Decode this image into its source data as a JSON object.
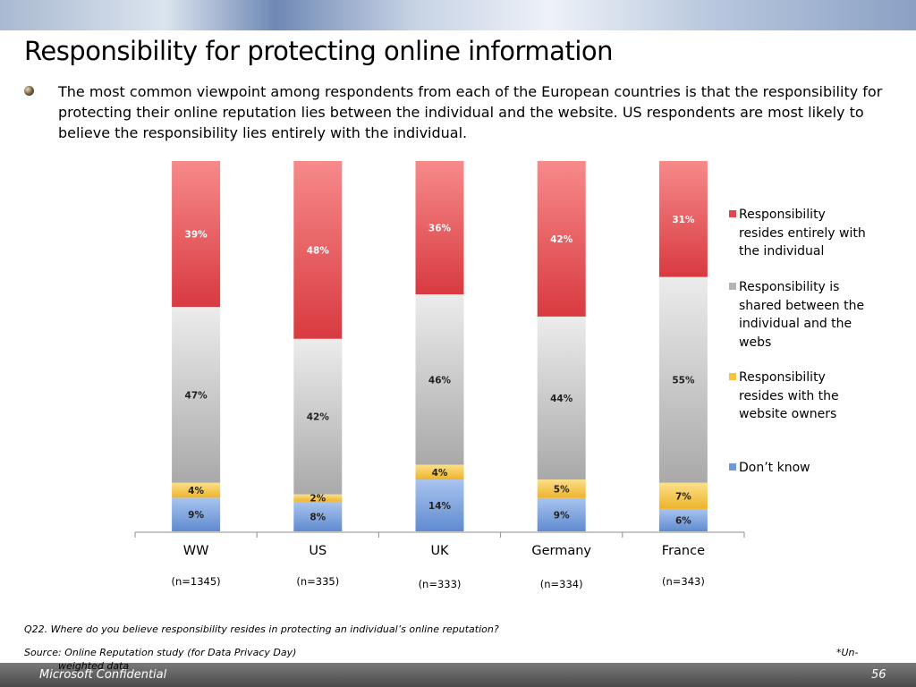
{
  "slide": {
    "title": "Responsibility for protecting online information",
    "intro": "The most common viewpoint among respondents from each of the European countries is that the responsibility for protecting their online reputation lies between the individual and the website. US respondents are most likely to believe the responsibility lies entirely with the individual.",
    "question": "Q22. Where do you believe responsibility resides in protecting an individual’s online reputation?",
    "source": "Source: Online Reputation study (for Data Privacy Day)",
    "unweighted_a": "*Un-",
    "unweighted_b": "weighted data",
    "confidential": "Microsoft Confidential",
    "page_number": "56"
  },
  "colors": {
    "individual": "#e0474c",
    "shared": "#b4b4b4",
    "website": "#f5c242",
    "dont_know": "#7098d6"
  },
  "chart_data": {
    "type": "bar",
    "stacked": true,
    "percent_stacked": true,
    "categories": [
      "WW",
      "US",
      "UK",
      "Germany",
      "France"
    ],
    "sample_sizes": [
      "(n=1345)",
      "(n=335)",
      "(n=333)",
      "(n=334)",
      "(n=343)"
    ],
    "series": [
      {
        "name": "Don’t know",
        "key": "dont_know",
        "values": [
          9,
          8,
          14,
          9,
          6
        ],
        "labels": [
          "9%",
          "8%",
          "14%",
          "9%",
          "6%"
        ]
      },
      {
        "name": "Responsibility resides with the website owners",
        "key": "website",
        "values": [
          4,
          2,
          4,
          5,
          7
        ],
        "labels": [
          "4%",
          "2%",
          "4%",
          "5%",
          "7%"
        ]
      },
      {
        "name": "Responsibility is shared between the individual and the webs",
        "key": "shared",
        "values": [
          47,
          42,
          46,
          44,
          55
        ],
        "labels": [
          "47%",
          "42%",
          "46%",
          "44%",
          "55%"
        ]
      },
      {
        "name": "Responsibility resides entirely with the individual",
        "key": "individual",
        "values": [
          39,
          48,
          36,
          42,
          31
        ],
        "labels": [
          "39%",
          "48%",
          "36%",
          "42%",
          "31%"
        ]
      }
    ],
    "legend": {
      "position": "right",
      "items": [
        {
          "key": "individual",
          "lines": [
            "Responsibility",
            "resides entirely with",
            "the individual"
          ]
        },
        {
          "key": "shared",
          "lines": [
            "Responsibility is",
            "shared between the",
            "individual and the",
            "webs"
          ]
        },
        {
          "key": "website",
          "lines": [
            "Responsibility",
            "resides with the",
            "website owners"
          ]
        },
        {
          "key": "dont_know",
          "lines": [
            "Don’t know"
          ]
        }
      ]
    },
    "ylim": [
      0,
      100
    ],
    "grid": false
  }
}
